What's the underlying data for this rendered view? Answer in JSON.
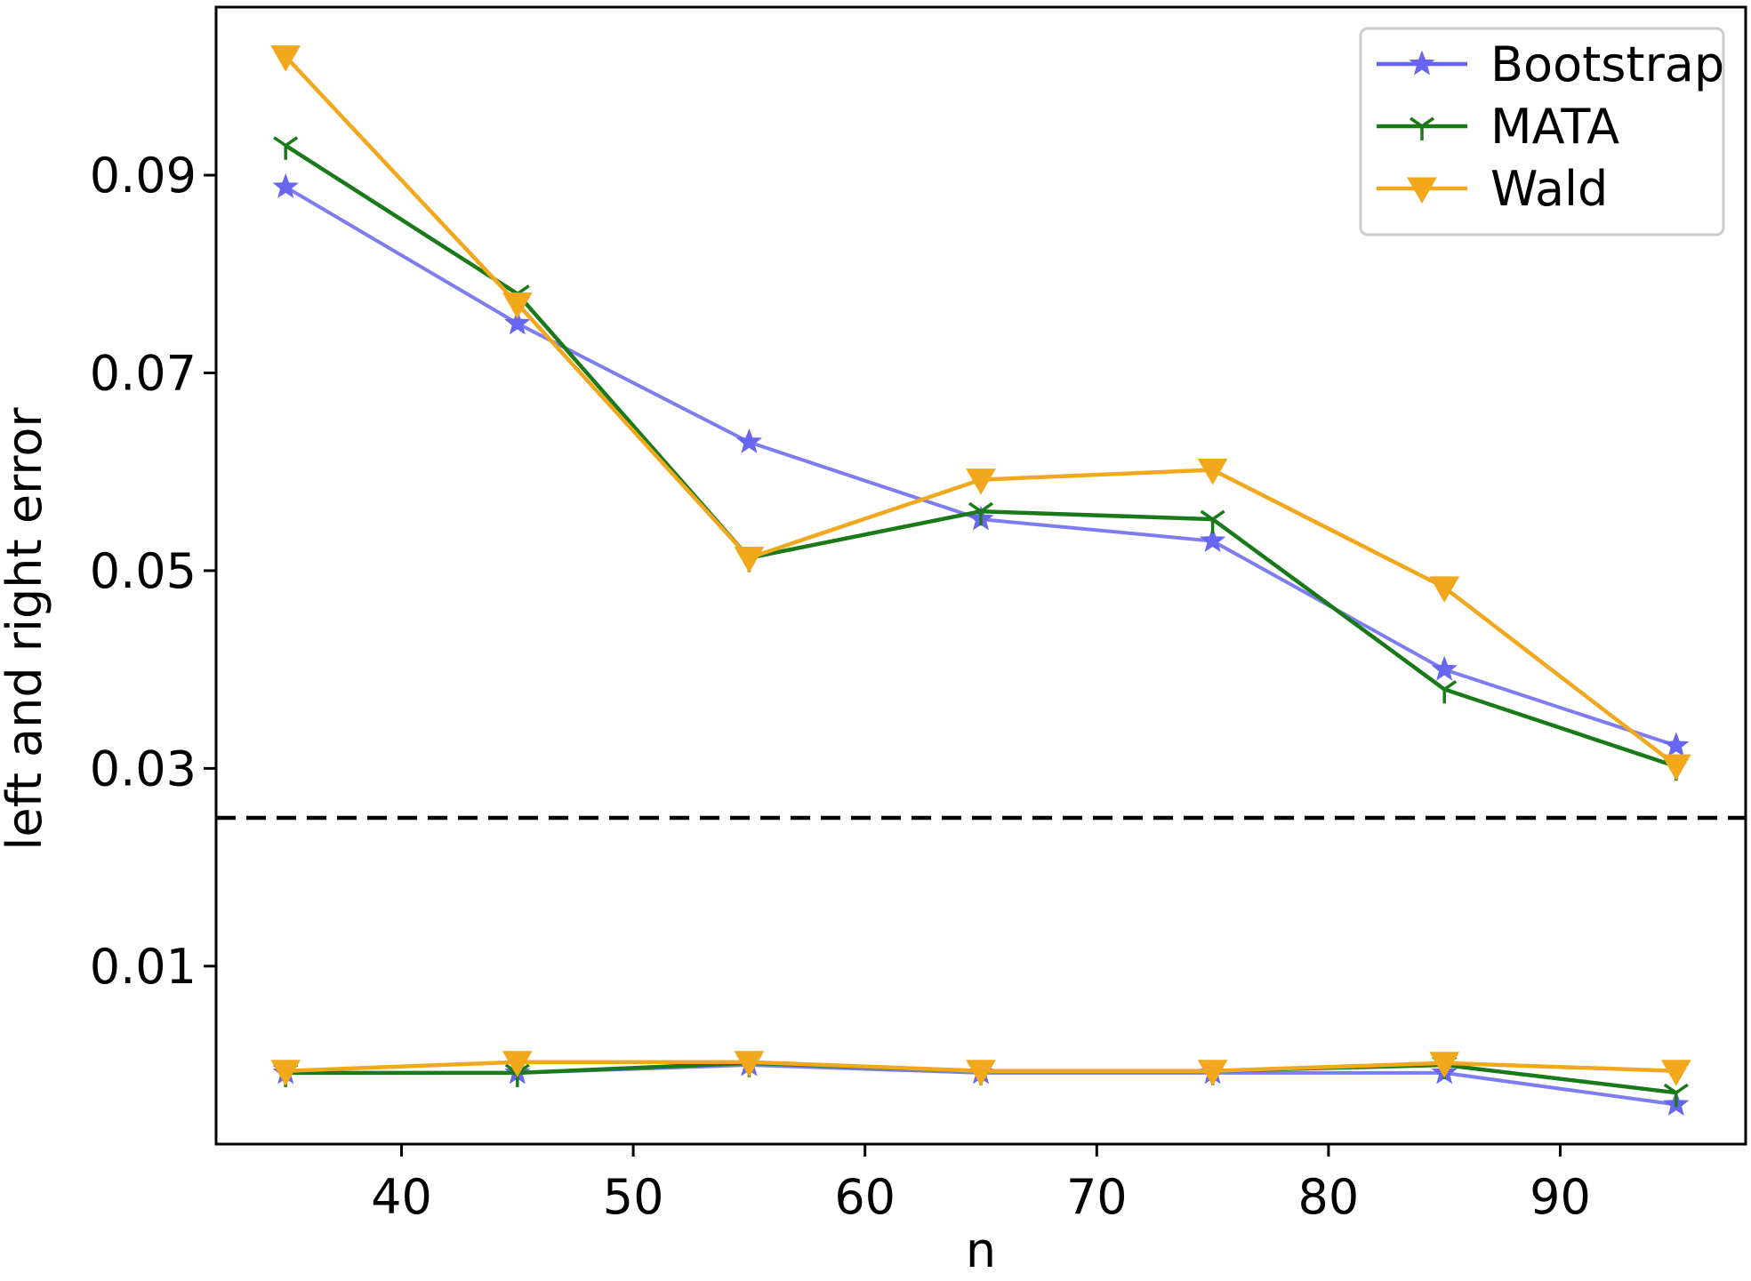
{
  "chart_data": {
    "type": "line",
    "title": "",
    "xlabel": "n",
    "ylabel": "left and right error",
    "xlim": [
      32,
      98
    ],
    "ylim": [
      -0.008,
      0.107
    ],
    "xticks": [
      40,
      50,
      60,
      70,
      80,
      90
    ],
    "yticks": [
      0.01,
      0.03,
      0.05,
      0.07,
      0.09
    ],
    "xtick_labels": [
      "40",
      "50",
      "60",
      "70",
      "80",
      "90"
    ],
    "ytick_labels": [
      "0.01",
      "0.03",
      "0.05",
      "0.07",
      "0.09"
    ],
    "grid": false,
    "legend_position": "top-right",
    "x": [
      35,
      45,
      55,
      65,
      75,
      85,
      95
    ],
    "reference_line": {
      "y": 0.025,
      "style": "dashed",
      "color": "#000000"
    },
    "series": [
      {
        "name": "Bootstrap",
        "group": "right",
        "marker": "star",
        "color": "#6666ee",
        "values": [
          0.0888,
          0.075,
          0.063,
          0.0552,
          0.053,
          0.04,
          0.0323
        ]
      },
      {
        "name": "MATA",
        "group": "right",
        "marker": "tri",
        "color": "#1a7a1a",
        "values": [
          0.093,
          0.078,
          0.0513,
          0.056,
          0.0552,
          0.038,
          0.0302
        ]
      },
      {
        "name": "Wald",
        "group": "right",
        "marker": "triangle-down",
        "color": "#f2a81d",
        "values": [
          0.102,
          0.077,
          0.0513,
          0.0592,
          0.0602,
          0.0483,
          0.0303
        ]
      },
      {
        "name": "Bootstrap",
        "group": "left",
        "marker": "star",
        "color": "#6666ee",
        "values": [
          -0.0008,
          -0.0008,
          0.0,
          -0.0008,
          -0.0008,
          -0.0008,
          -0.004
        ]
      },
      {
        "name": "MATA",
        "group": "left",
        "marker": "tri",
        "color": "#1a7a1a",
        "values": [
          -0.0008,
          -0.0008,
          0.0002,
          -0.0006,
          -0.0006,
          0.0,
          -0.0028
        ]
      },
      {
        "name": "Wald",
        "group": "left",
        "marker": "triangle-down",
        "color": "#f2a81d",
        "values": [
          -0.0006,
          0.0003,
          0.0003,
          -0.0006,
          -0.0006,
          0.0002,
          -0.0006
        ]
      }
    ],
    "legend": [
      {
        "label": "Bootstrap",
        "marker": "star",
        "color": "#6666ee"
      },
      {
        "label": "MATA",
        "marker": "tri",
        "color": "#1a7a1a"
      },
      {
        "label": "Wald",
        "marker": "triangle-down",
        "color": "#f2a81d"
      }
    ]
  }
}
